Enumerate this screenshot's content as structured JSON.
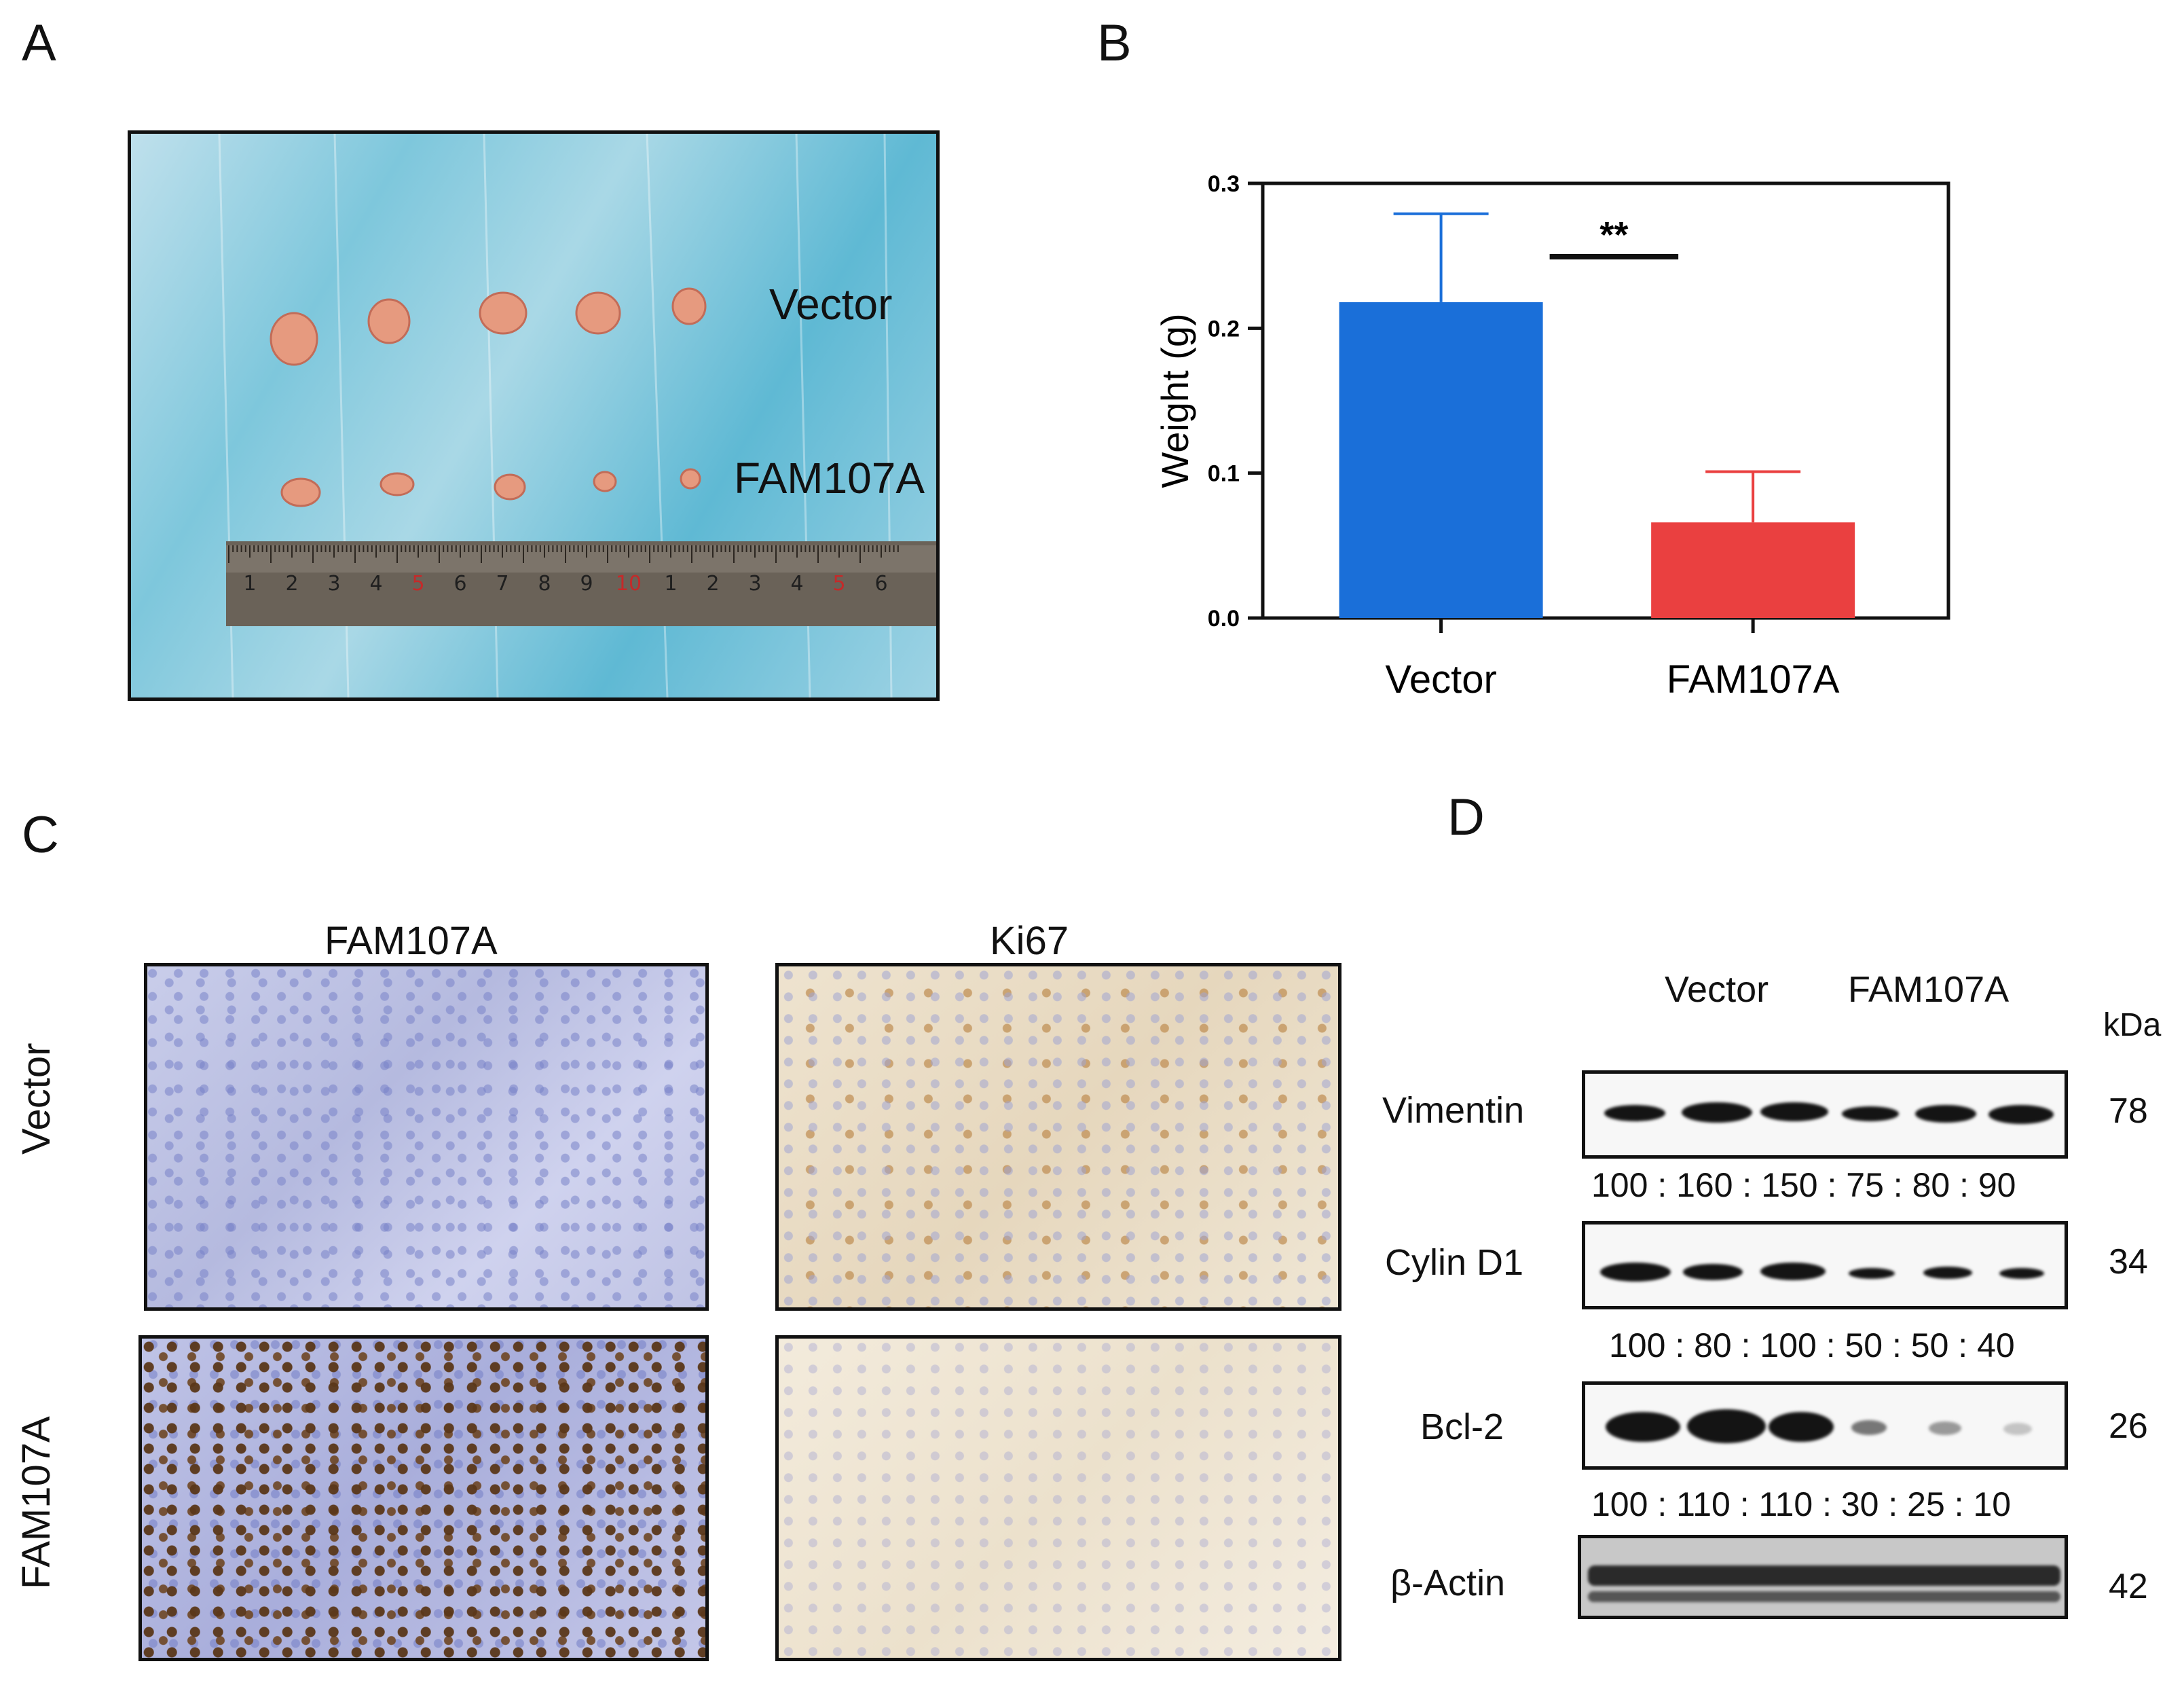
{
  "panels": {
    "a": {
      "letter": "A",
      "labels": {
        "top": "Vector",
        "bottom": "FAM107A"
      },
      "ruler_numbers": [
        "1",
        "2",
        "3",
        "4",
        "5",
        "6",
        "7",
        "8",
        "9",
        "10",
        "1",
        "2",
        "3",
        "4",
        "5",
        "6"
      ]
    },
    "b": {
      "letter": "B"
    },
    "c": {
      "letter": "C",
      "col_labels": [
        "FAM107A",
        "Ki67"
      ],
      "row_labels": [
        "Vector",
        "FAM107A"
      ]
    },
    "d": {
      "letter": "D",
      "group_labels": [
        "Vector",
        "FAM107A"
      ],
      "unit": "kDa",
      "rows": [
        {
          "protein": "Vimentin",
          "kda": "78",
          "ratio": "100 : 160 : 150 : 75 : 80 : 90"
        },
        {
          "protein": "Cylin D1",
          "kda": "34",
          "ratio": "100 : 80 : 100 : 50 : 50 : 40"
        },
        {
          "protein": "Bcl-2",
          "kda": "26",
          "ratio": "100 : 110 : 110 : 30 : 25 : 10"
        },
        {
          "protein": "β-Actin",
          "kda": "42",
          "ratio": ""
        }
      ]
    }
  },
  "chart_data": {
    "type": "bar",
    "categories": [
      "Vector",
      "FAM107A"
    ],
    "values": [
      0.218,
      0.066
    ],
    "errors": [
      0.061,
      0.035
    ],
    "colors": [
      "#1a6fd9",
      "#ea4040"
    ],
    "ylabel": "Weight (g)",
    "xlabel": "",
    "ylim": [
      0,
      0.3
    ],
    "yticks": [
      "0.0",
      "0.1",
      "0.2",
      "0.3"
    ],
    "yticks_values": [
      0,
      0.1,
      0.2,
      0.3
    ],
    "significance": "**"
  }
}
